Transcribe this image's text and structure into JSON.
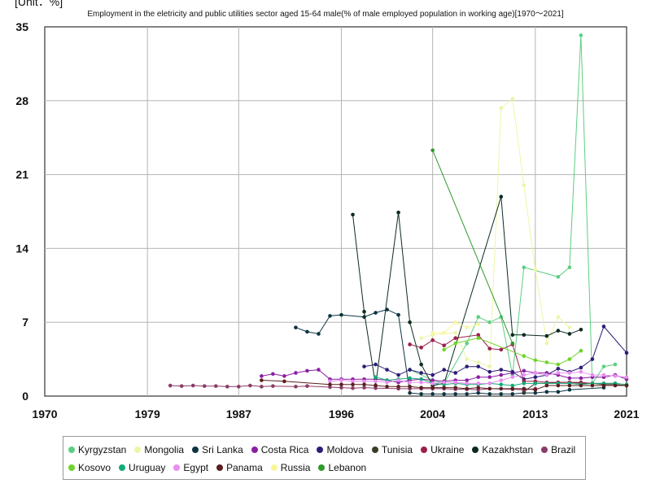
{
  "chart_data": {
    "type": "line",
    "title": "Employment in the eletricity and public utilities sector aged 15-64 male(% of male employed population in working age)[1970～2021]",
    "unit_label": "[Unit：%]",
    "xlim": [
      1970,
      2021
    ],
    "ylim": [
      0,
      35
    ],
    "x_ticks": [
      "1970",
      "1979",
      "1987",
      "1996",
      "2004",
      "2013",
      "2021"
    ],
    "y_ticks": [
      "0",
      "7",
      "14",
      "21",
      "28",
      "35"
    ],
    "grid": true,
    "legend_position": "bottom",
    "series": [
      {
        "name": "Kyrgyzstan",
        "color": "#5ccf82",
        "points": [
          [
            2002,
            2.5
          ],
          [
            2004,
            1.5
          ],
          [
            2005,
            1.2
          ],
          [
            2007,
            5.0
          ],
          [
            2008,
            7.5
          ],
          [
            2009,
            7.0
          ],
          [
            2010,
            7.5
          ],
          [
            2011,
            2.0
          ],
          [
            2012,
            12.2
          ],
          [
            2015,
            11.3
          ],
          [
            2016,
            12.2
          ],
          [
            2017,
            34.2
          ],
          [
            2018,
            1.2
          ],
          [
            2019,
            2.8
          ],
          [
            2020,
            3.0
          ]
        ]
      },
      {
        "name": "Mongolia",
        "color": "#eef5a8",
        "points": [
          [
            2003,
            5.5
          ],
          [
            2004,
            5.8
          ],
          [
            2006,
            6.0
          ],
          [
            2007,
            3.5
          ],
          [
            2008,
            3.2
          ],
          [
            2009,
            2.8
          ],
          [
            2010,
            27.3
          ],
          [
            2011,
            28.2
          ],
          [
            2012,
            20.0
          ],
          [
            2013,
            12.0
          ],
          [
            2014,
            5.0
          ],
          [
            2015,
            7.5
          ],
          [
            2016,
            6.5
          ]
        ]
      },
      {
        "name": "Sri Lanka",
        "color": "#0c3340",
        "points": [
          [
            1992,
            6.5
          ],
          [
            1993,
            6.1
          ],
          [
            1994,
            5.9
          ],
          [
            1995,
            7.6
          ],
          [
            1996,
            7.7
          ],
          [
            1998,
            7.5
          ],
          [
            1999,
            7.9
          ],
          [
            2000,
            8.2
          ],
          [
            2001,
            7.7
          ],
          [
            2002,
            0.3
          ],
          [
            2003,
            0.2
          ],
          [
            2004,
            0.2
          ],
          [
            2005,
            0.2
          ],
          [
            2006,
            0.2
          ],
          [
            2007,
            0.2
          ],
          [
            2008,
            0.3
          ],
          [
            2009,
            0.2
          ],
          [
            2010,
            0.2
          ],
          [
            2011,
            0.2
          ],
          [
            2012,
            0.3
          ],
          [
            2013,
            0.3
          ],
          [
            2014,
            0.4
          ],
          [
            2015,
            0.4
          ],
          [
            2016,
            0.6
          ],
          [
            2019,
            0.8
          ]
        ]
      },
      {
        "name": "Costa Rica",
        "color": "#8a1fa3",
        "points": [
          [
            1989,
            1.9
          ],
          [
            1990,
            2.1
          ],
          [
            1991,
            1.9
          ],
          [
            1992,
            2.2
          ],
          [
            1993,
            2.4
          ],
          [
            1994,
            2.5
          ],
          [
            1995,
            1.6
          ],
          [
            1996,
            1.6
          ],
          [
            1997,
            1.6
          ],
          [
            1998,
            1.6
          ],
          [
            1999,
            1.6
          ],
          [
            2000,
            1.5
          ],
          [
            2001,
            1.3
          ],
          [
            2002,
            1.5
          ],
          [
            2003,
            1.6
          ],
          [
            2004,
            1.5
          ],
          [
            2005,
            1.4
          ],
          [
            2006,
            1.5
          ],
          [
            2007,
            1.5
          ],
          [
            2008,
            1.8
          ],
          [
            2009,
            1.8
          ],
          [
            2010,
            2.0
          ],
          [
            2011,
            2.2
          ],
          [
            2012,
            2.4
          ],
          [
            2013,
            2.2
          ],
          [
            2014,
            2.2
          ],
          [
            2015,
            2.0
          ],
          [
            2016,
            1.7
          ],
          [
            2017,
            1.7
          ],
          [
            2018,
            1.8
          ],
          [
            2019,
            1.8
          ],
          [
            2020,
            2.0
          ],
          [
            2021,
            1.6
          ]
        ]
      },
      {
        "name": "Moldova",
        "color": "#2d1d78",
        "points": [
          [
            1998,
            2.8
          ],
          [
            1999,
            3.0
          ],
          [
            2000,
            2.5
          ],
          [
            2001,
            2.0
          ],
          [
            2002,
            2.5
          ],
          [
            2003,
            2.2
          ],
          [
            2004,
            2.0
          ],
          [
            2005,
            2.5
          ],
          [
            2006,
            2.2
          ],
          [
            2007,
            2.8
          ],
          [
            2008,
            2.8
          ],
          [
            2009,
            2.3
          ],
          [
            2010,
            2.5
          ],
          [
            2011,
            2.3
          ],
          [
            2012,
            1.6
          ],
          [
            2013,
            1.8
          ],
          [
            2014,
            2.0
          ],
          [
            2015,
            2.6
          ],
          [
            2016,
            2.3
          ],
          [
            2017,
            2.7
          ],
          [
            2018,
            3.5
          ],
          [
            2019,
            6.6
          ],
          [
            2021,
            4.1
          ]
        ]
      },
      {
        "name": "Tunisia",
        "color": "#3a3d28",
        "points": [
          [
            2012,
            0.4
          ],
          [
            2013,
            1.2
          ],
          [
            2014,
            1.2
          ],
          [
            2015,
            1.3
          ],
          [
            2016,
            1.3
          ],
          [
            2017,
            1.2
          ],
          [
            2018,
            1.2
          ],
          [
            2019,
            1.1
          ],
          [
            2020,
            1.1
          ],
          [
            2021,
            1.0
          ]
        ]
      },
      {
        "name": "Ukraine",
        "color": "#9c1f4a",
        "points": [
          [
            2002,
            4.9
          ],
          [
            2003,
            4.6
          ],
          [
            2004,
            5.3
          ],
          [
            2005,
            4.8
          ],
          [
            2006,
            5.5
          ],
          [
            2008,
            5.8
          ],
          [
            2009,
            4.5
          ],
          [
            2010,
            4.4
          ],
          [
            2011,
            4.9
          ],
          [
            2012,
            1.4
          ],
          [
            2013,
            1.4
          ],
          [
            2014,
            1.3
          ],
          [
            2015,
            1.3
          ],
          [
            2016,
            1.3
          ],
          [
            2017,
            1.3
          ],
          [
            2018,
            1.2
          ],
          [
            2019,
            1.2
          ],
          [
            2020,
            1.2
          ]
        ]
      },
      {
        "name": "Kazakhstan",
        "color": "#0c2b1f",
        "points": [
          [
            1997,
            17.2
          ],
          [
            1998,
            8.0
          ],
          [
            1999,
            1.0
          ],
          [
            2001,
            17.4
          ],
          [
            2002,
            7.0
          ],
          [
            2003,
            3.0
          ],
          [
            2004,
            1.0
          ],
          [
            2005,
            1.2
          ],
          [
            2010,
            18.9
          ],
          [
            2011,
            5.8
          ],
          [
            2012,
            5.8
          ],
          [
            2014,
            5.7
          ],
          [
            2015,
            6.2
          ],
          [
            2016,
            5.9
          ],
          [
            2017,
            6.3
          ]
        ]
      },
      {
        "name": "Brazil",
        "color": "#8a3c68",
        "points": [
          [
            1981,
            1.0
          ],
          [
            1982,
            0.95
          ],
          [
            1983,
            1.0
          ],
          [
            1984,
            0.95
          ],
          [
            1985,
            0.95
          ],
          [
            1986,
            0.9
          ],
          [
            1987,
            0.9
          ],
          [
            1988,
            1.0
          ],
          [
            1989,
            0.9
          ],
          [
            1990,
            0.95
          ],
          [
            1992,
            0.9
          ],
          [
            1993,
            0.95
          ],
          [
            1995,
            0.85
          ],
          [
            1996,
            0.8
          ],
          [
            1997,
            0.75
          ],
          [
            1998,
            0.8
          ],
          [
            1999,
            0.75
          ],
          [
            2001,
            0.7
          ],
          [
            2002,
            0.7
          ],
          [
            2003,
            0.7
          ],
          [
            2004,
            0.7
          ],
          [
            2005,
            0.7
          ],
          [
            2006,
            0.65
          ],
          [
            2007,
            0.65
          ],
          [
            2008,
            0.6
          ],
          [
            2009,
            0.7
          ],
          [
            2011,
            0.65
          ],
          [
            2012,
            0.6
          ],
          [
            2013,
            0.7
          ]
        ]
      },
      {
        "name": "Kosovo",
        "color": "#6ed42b",
        "points": [
          [
            2005,
            4.4
          ],
          [
            2006,
            5.0
          ],
          [
            2008,
            5.5
          ],
          [
            2012,
            3.8
          ],
          [
            2013,
            3.4
          ],
          [
            2014,
            3.2
          ],
          [
            2015,
            3.0
          ],
          [
            2016,
            3.5
          ],
          [
            2017,
            4.3
          ]
        ]
      },
      {
        "name": "Uruguay",
        "color": "#13ab78",
        "points": [
          [
            1999,
            1.8
          ],
          [
            2000,
            1.5
          ],
          [
            2001,
            1.6
          ],
          [
            2002,
            1.7
          ],
          [
            2003,
            1.6
          ],
          [
            2004,
            1.2
          ],
          [
            2005,
            1.1
          ],
          [
            2006,
            1.2
          ],
          [
            2007,
            1.1
          ],
          [
            2008,
            1.1
          ],
          [
            2009,
            1.2
          ],
          [
            2010,
            1.1
          ],
          [
            2011,
            1.0
          ],
          [
            2012,
            1.2
          ],
          [
            2013,
            1.2
          ],
          [
            2014,
            1.2
          ],
          [
            2015,
            1.2
          ],
          [
            2016,
            1.2
          ],
          [
            2017,
            1.1
          ],
          [
            2018,
            1.2
          ],
          [
            2019,
            1.2
          ],
          [
            2020,
            1.2
          ],
          [
            2021,
            1.1
          ]
        ]
      },
      {
        "name": "Egypt",
        "color": "#e98ef0",
        "points": [
          [
            1995,
            1.4
          ],
          [
            1996,
            1.5
          ],
          [
            1997,
            1.4
          ],
          [
            1998,
            1.4
          ],
          [
            1999,
            1.4
          ],
          [
            2000,
            1.3
          ],
          [
            2001,
            1.5
          ],
          [
            2002,
            1.3
          ],
          [
            2003,
            1.3
          ],
          [
            2004,
            1.2
          ],
          [
            2005,
            1.3
          ],
          [
            2006,
            1.3
          ],
          [
            2007,
            1.2
          ],
          [
            2008,
            1.2
          ],
          [
            2009,
            1.2
          ],
          [
            2010,
            1.5
          ],
          [
            2011,
            1.8
          ],
          [
            2012,
            2.0
          ],
          [
            2013,
            2.2
          ],
          [
            2014,
            2.0
          ],
          [
            2015,
            2.2
          ],
          [
            2016,
            2.2
          ],
          [
            2017,
            2.3
          ],
          [
            2018,
            2.0
          ],
          [
            2019,
            2.0
          ],
          [
            2020,
            1.9
          ],
          [
            2021,
            1.8
          ]
        ]
      },
      {
        "name": "Panama",
        "color": "#5a1f1f",
        "points": [
          [
            1989,
            1.5
          ],
          [
            1991,
            1.4
          ],
          [
            1995,
            1.1
          ],
          [
            1996,
            1.1
          ],
          [
            1997,
            1.1
          ],
          [
            1998,
            1.1
          ],
          [
            1999,
            1.0
          ],
          [
            2000,
            0.9
          ],
          [
            2001,
            0.9
          ],
          [
            2002,
            0.9
          ],
          [
            2003,
            0.8
          ],
          [
            2004,
            0.8
          ],
          [
            2005,
            0.8
          ],
          [
            2006,
            0.8
          ],
          [
            2007,
            0.7
          ],
          [
            2008,
            0.8
          ],
          [
            2009,
            0.7
          ],
          [
            2010,
            0.7
          ],
          [
            2011,
            0.7
          ],
          [
            2012,
            0.7
          ],
          [
            2013,
            0.6
          ],
          [
            2014,
            1.0
          ],
          [
            2015,
            1.0
          ],
          [
            2016,
            1.0
          ],
          [
            2017,
            1.0
          ],
          [
            2018,
            1.0
          ],
          [
            2019,
            1.0
          ],
          [
            2020,
            1.0
          ],
          [
            2021,
            1.0
          ]
        ]
      },
      {
        "name": "Russia",
        "color": "#f7f79a",
        "points": [
          [
            2004,
            6.0
          ],
          [
            2005,
            6.0
          ],
          [
            2006,
            7.0
          ],
          [
            2007,
            6.5
          ],
          [
            2008,
            6.8
          ]
        ]
      },
      {
        "name": "Lebanon",
        "color": "#2f9a2a",
        "points": [
          [
            2004,
            23.3
          ],
          [
            2011,
            5.0
          ]
        ]
      }
    ]
  },
  "legend": {
    "rows": [
      [
        "Kyrgyzstan",
        "Mongolia",
        "Sri Lanka",
        "Costa Rica",
        "Moldova",
        "Tunisia",
        "Ukraine",
        "Kazakhstan",
        "Brazil"
      ],
      [
        "Kosovo",
        "Uruguay",
        "Egypt",
        "Panama",
        "Russia",
        "Lebanon"
      ]
    ]
  }
}
